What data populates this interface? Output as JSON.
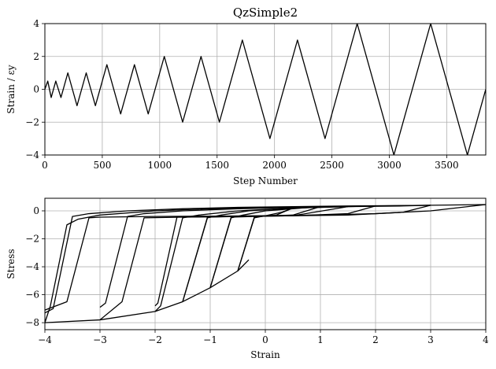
{
  "chart_data": [
    {
      "type": "line",
      "title": "QzSimple2",
      "xlabel": "Step Number",
      "ylabel": "Strain / εy",
      "xlim": [
        0,
        3840
      ],
      "ylim": [
        -4,
        4
      ],
      "grid": true,
      "xticks": [
        "0",
        "500",
        "1000",
        "1500",
        "2000",
        "2500",
        "3000",
        "3500"
      ],
      "yticks": [
        "−4",
        "−2",
        "0",
        "2",
        "4"
      ],
      "series": [
        {
          "color": "#000000",
          "x": [
            0,
            25,
            55,
            95,
            140,
            200,
            280,
            360,
            440,
            540,
            660,
            780,
            900,
            1040,
            1200,
            1360,
            1520,
            1720,
            1960,
            2200,
            2440,
            2720,
            3040,
            3360,
            3680,
            3840
          ],
          "y": [
            0,
            0.5,
            -0.5,
            0.5,
            -0.5,
            1,
            -1,
            1,
            -1,
            1.5,
            -1.5,
            1.5,
            -1.5,
            2,
            -2,
            2,
            -2,
            3,
            -3,
            3,
            -3,
            4,
            -4,
            4,
            -4,
            0
          ]
        }
      ]
    },
    {
      "type": "line",
      "title": "",
      "xlabel": "Strain",
      "ylabel": "Stress",
      "xlim": [
        -4,
        4
      ],
      "ylim": [
        -8.5,
        0.9
      ],
      "grid": true,
      "xticks": [
        "−4",
        "−3",
        "−2",
        "−1",
        "0",
        "1",
        "2",
        "3",
        "4"
      ],
      "yticks": [
        "−8",
        "−6",
        "−4",
        "−2",
        "0"
      ],
      "series": [
        {
          "color": "#000000",
          "x": [
            -0.3,
            -0.5,
            -1.0,
            -1.5,
            -2.0,
            -3.0,
            -4.0
          ],
          "y": [
            -3.5,
            -4.3,
            -5.5,
            -6.5,
            -7.2,
            -7.8,
            -8.0
          ]
        },
        {
          "color": "#000000",
          "x": [
            -4.0,
            -3.9,
            -3.6,
            -3.4,
            -3.0,
            -2.0,
            -1.0,
            0.0,
            1.0,
            2.0,
            3.0,
            4.0
          ],
          "y": [
            -8.0,
            -6.8,
            -1.0,
            -0.6,
            -0.3,
            0.0,
            0.15,
            0.25,
            0.3,
            0.35,
            0.4,
            0.45
          ]
        },
        {
          "color": "#000000",
          "x": [
            -4.0,
            -3.6,
            -3.2,
            -3.0,
            -2.0,
            -1.0,
            0.0,
            1.0,
            2.0,
            3.0,
            4.0
          ],
          "y": [
            -7.1,
            -6.5,
            -0.5,
            -0.45,
            -0.4,
            -0.38,
            -0.35,
            -0.3,
            -0.2,
            0.0,
            0.45
          ]
        },
        {
          "color": "#000000",
          "x": [
            -4.0,
            -3.85,
            -3.5,
            -3.2,
            -2.5,
            -1.5,
            -0.5,
            0.5,
            1.5,
            2.5,
            3.0
          ],
          "y": [
            -7.3,
            -7.0,
            -0.4,
            -0.2,
            0.0,
            0.15,
            0.25,
            0.3,
            0.35,
            0.38,
            0.4
          ]
        },
        {
          "color": "#000000",
          "x": [
            -3.0,
            -2.6,
            -2.2,
            -1.5,
            -0.5,
            0.5,
            1.5,
            2.5,
            3.0
          ],
          "y": [
            -7.8,
            -6.5,
            -0.5,
            -0.45,
            -0.4,
            -0.35,
            -0.3,
            -0.1,
            0.4
          ]
        },
        {
          "color": "#000000",
          "x": [
            -3.0,
            -2.9,
            -2.5,
            -2.2,
            -1.5,
            -0.5,
            0.5,
            1.5,
            2.5,
            3.0
          ],
          "y": [
            -6.9,
            -6.6,
            -0.4,
            -0.2,
            0.0,
            0.15,
            0.25,
            0.3,
            0.35,
            0.4
          ]
        },
        {
          "color": "#000000",
          "x": [
            -2.0,
            -1.9,
            -1.5,
            -1.2,
            -0.5,
            0.5,
            1.5,
            2.0
          ],
          "y": [
            -7.2,
            -6.8,
            -0.5,
            -0.3,
            0.0,
            0.2,
            0.3,
            0.35
          ]
        },
        {
          "color": "#000000",
          "x": [
            -2.0,
            -1.95,
            -1.6,
            -1.5,
            -0.5,
            0.5,
            1.5,
            2.0
          ],
          "y": [
            -6.8,
            -6.6,
            -0.4,
            -0.45,
            -0.4,
            -0.35,
            -0.2,
            0.35
          ]
        },
        {
          "color": "#000000",
          "x": [
            -1.5,
            -1.05,
            -0.8,
            -0.3,
            0.5,
            1.5
          ],
          "y": [
            -6.5,
            -0.5,
            -0.3,
            0.0,
            0.2,
            0.3
          ]
        },
        {
          "color": "#000000",
          "x": [
            -1.5,
            -1.05,
            -0.5,
            0.5,
            1.5
          ],
          "y": [
            -6.5,
            -0.45,
            -0.4,
            -0.35,
            0.3
          ]
        },
        {
          "color": "#000000",
          "x": [
            -1.0,
            -0.62,
            -0.4,
            0.0,
            0.5,
            1.0
          ],
          "y": [
            -5.5,
            -0.5,
            -0.3,
            0.0,
            0.15,
            0.3
          ]
        },
        {
          "color": "#000000",
          "x": [
            -1.0,
            -0.62,
            -0.2,
            0.5,
            1.0
          ],
          "y": [
            -5.5,
            -0.45,
            -0.4,
            -0.3,
            0.3
          ]
        },
        {
          "color": "#000000",
          "x": [
            -0.5,
            -0.2,
            0.0,
            0.3,
            0.5
          ],
          "y": [
            -4.3,
            -0.5,
            -0.35,
            -0.1,
            0.2
          ]
        },
        {
          "color": "#000000",
          "x": [
            -0.5,
            -0.2,
            0.2,
            0.5
          ],
          "y": [
            -4.3,
            -0.45,
            -0.3,
            0.2
          ]
        }
      ]
    }
  ]
}
